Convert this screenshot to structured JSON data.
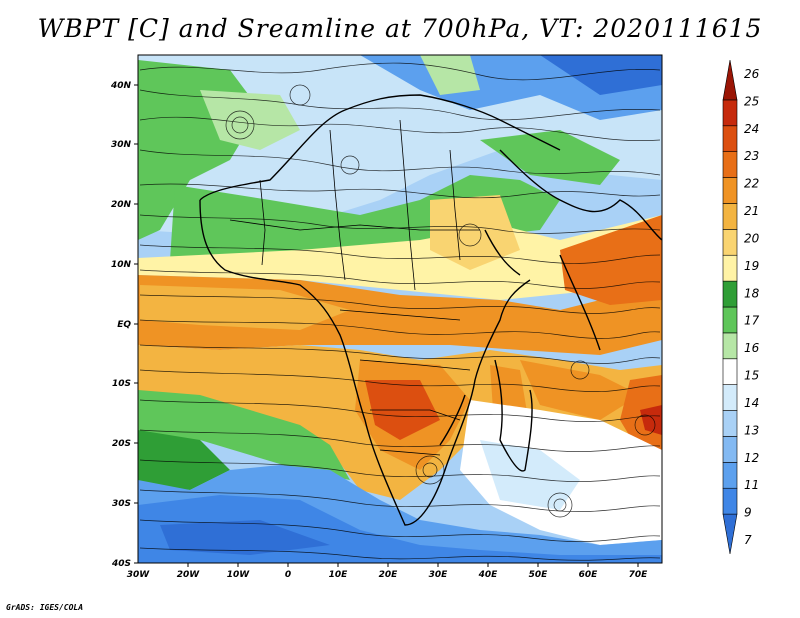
{
  "title": "WBPT [C] and Sreamline at 700hPa, VT: 2020111615",
  "credit": "GrADS: IGES/COLA",
  "map": {
    "lat_labels": [
      "40N",
      "30N",
      "20N",
      "10N",
      "EQ",
      "10S",
      "20S",
      "30S",
      "40S"
    ],
    "lon_labels": [
      "30W",
      "20W",
      "10W",
      "0",
      "10E",
      "20E",
      "30E",
      "40E",
      "50E",
      "60E",
      "70E"
    ]
  },
  "colorbar": {
    "levels": [
      "7",
      "9",
      "11",
      "12",
      "13",
      "14",
      "15",
      "16",
      "17",
      "18",
      "19",
      "20",
      "21",
      "22",
      "23",
      "24",
      "25",
      "26"
    ],
    "colors": [
      "#2f6fd6",
      "#3f86e6",
      "#5ca0ee",
      "#83b9f2",
      "#a9d1f6",
      "#d3ebfb",
      "#ffffff",
      "#b6e6a6",
      "#5fc65a",
      "#2f9e36",
      "#fff3a6",
      "#f9d471",
      "#f3b441",
      "#ef9324",
      "#e86f17",
      "#dc4f10",
      "#c62a0c",
      "#9a1505"
    ]
  }
}
